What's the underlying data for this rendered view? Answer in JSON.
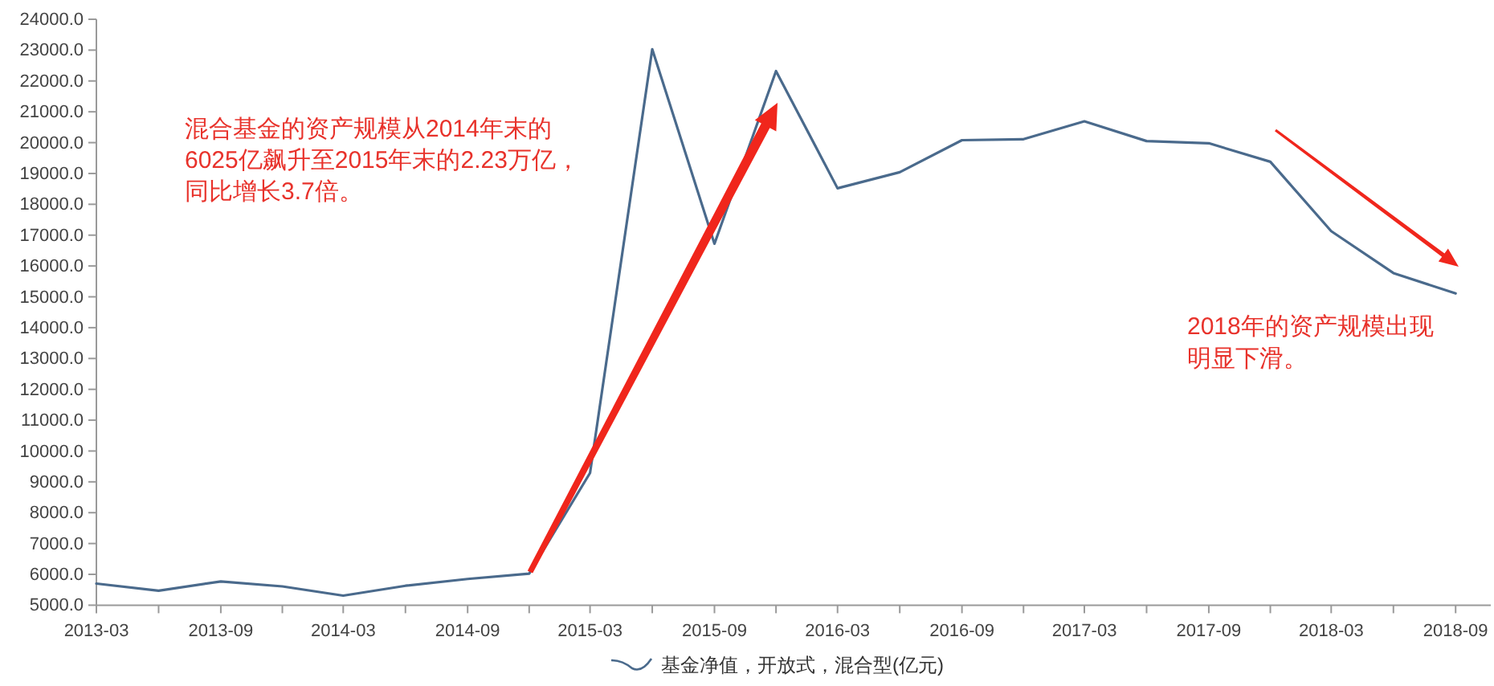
{
  "chart_data": {
    "type": "line",
    "x": [
      "2013-03",
      "2013-06",
      "2013-09",
      "2013-12",
      "2014-03",
      "2014-06",
      "2014-09",
      "2014-12",
      "2015-03",
      "2015-06",
      "2015-09",
      "2015-12",
      "2016-03",
      "2016-06",
      "2016-09",
      "2016-12",
      "2017-03",
      "2017-06",
      "2017-09",
      "2017-12",
      "2018-03",
      "2018-06",
      "2018-09"
    ],
    "series": [
      {
        "name": "基金净值，开放式，混合型(亿元)",
        "color": "#4a6a8c",
        "values": [
          5700,
          5470,
          5770,
          5610,
          5310,
          5630,
          5850,
          6025,
          9290,
          23030,
          16720,
          22320,
          18520,
          19040,
          20080,
          20110,
          20690,
          20050,
          19980,
          19380,
          17130,
          15770,
          15110
        ]
      }
    ],
    "xlim": [
      "2013-03",
      "2018-10-23"
    ],
    "xticks": [
      "2013-03",
      {
        "value": "2013-06",
        "label": null
      },
      "2013-09",
      {
        "value": "2013-12",
        "label": null
      },
      "2014-03",
      {
        "value": "2014-06",
        "label": null
      },
      "2014-09",
      {
        "value": "2014-12",
        "label": null
      },
      "2015-03",
      {
        "value": "2015-06",
        "label": null
      },
      "2015-09",
      {
        "value": "2015-12",
        "label": null
      },
      "2016-03",
      {
        "value": "2016-06",
        "label": null
      },
      "2016-09",
      {
        "value": "2016-12",
        "label": null
      },
      "2017-03",
      {
        "value": "2017-06",
        "label": null
      },
      "2017-09",
      {
        "value": "2017-12",
        "label": null
      },
      "2018-03",
      {
        "value": "2018-06",
        "label": null
      },
      "2018-09"
    ],
    "ylim": [
      5000,
      24000
    ],
    "yticks": [
      {
        "value": 5000,
        "label": "5000.0"
      },
      {
        "value": 6000,
        "label": "6000.0"
      },
      {
        "value": 7000,
        "label": "7000.0"
      },
      {
        "value": 8000,
        "label": "8000.0"
      },
      {
        "value": 9000,
        "label": "9000.0"
      },
      {
        "value": 10000,
        "label": "10000.0"
      },
      {
        "value": 11000,
        "label": "11000.0"
      },
      {
        "value": 12000,
        "label": "12000.0"
      },
      {
        "value": 13000,
        "label": "13000.0"
      },
      {
        "value": 14000,
        "label": "14000.0"
      },
      {
        "value": 15000,
        "label": "15000.0"
      },
      {
        "value": 16000,
        "label": "16000.0"
      },
      {
        "value": 17000,
        "label": "17000.0"
      },
      {
        "value": 18000,
        "label": "18000.0"
      },
      {
        "value": 19000,
        "label": "19000.0"
      },
      {
        "value": 20000,
        "label": "20000.0"
      },
      {
        "value": 21000,
        "label": "21000.0"
      },
      {
        "value": 22000,
        "label": "22000.0"
      },
      {
        "value": 23000,
        "label": "23000.0"
      },
      {
        "value": 24000,
        "label": "24000.0"
      }
    ],
    "legend": "bottom",
    "annotations": [
      "混合基金的资产规模从2014年末的6025亿飙升至2015年末的2.23万亿，同比增长3.7倍。",
      "2018年的资产规模出现明显下滑。"
    ]
  }
}
